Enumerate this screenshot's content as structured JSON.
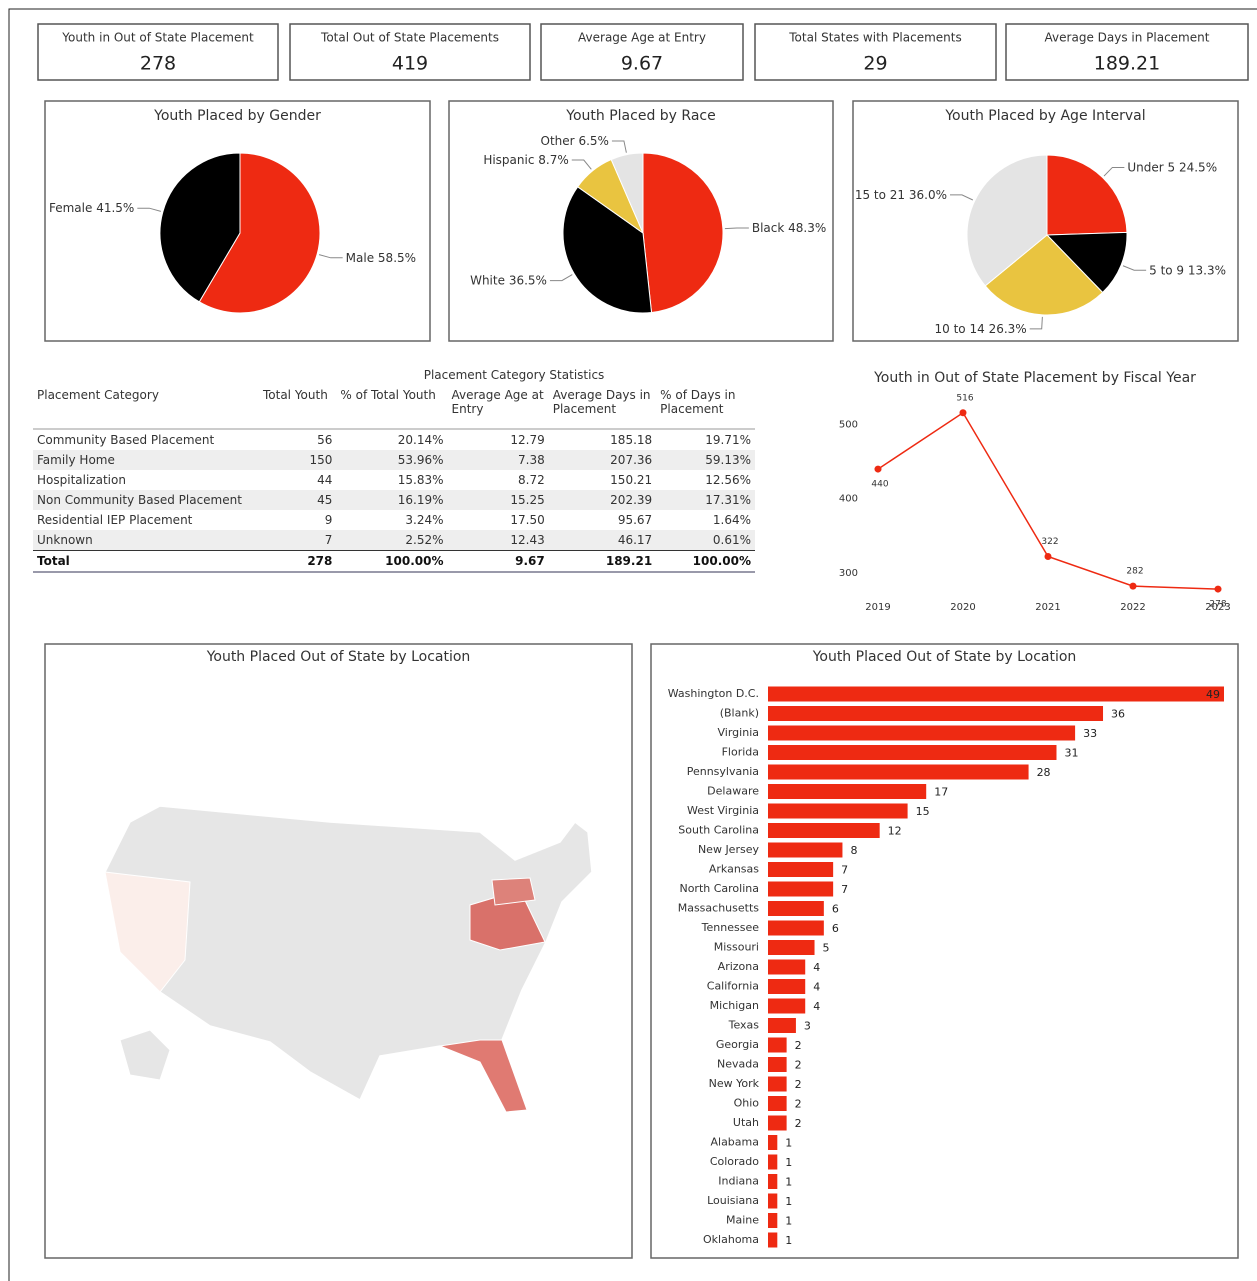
{
  "kpis": [
    {
      "label": "Youth in Out of State Placement",
      "value": 278
    },
    {
      "label": "Total Out of State Placements",
      "value": 419
    },
    {
      "label": "Average Age at Entry",
      "value": 9.67
    },
    {
      "label": "Total States with Placements",
      "value": 29
    },
    {
      "label": "Average Days in Placement",
      "value": 189.21
    }
  ],
  "table": {
    "title": "Placement Category Statistics",
    "columns": [
      "Placement Category",
      "Total Youth",
      "% of Total Youth",
      "Average Age at Entry",
      "Average Days in Placement",
      "% of Days in Placement"
    ],
    "rows": [
      [
        "Community Based Placement",
        "56",
        "20.14%",
        "12.79",
        "185.18",
        "19.71%"
      ],
      [
        "Family Home",
        "150",
        "53.96%",
        "7.38",
        "207.36",
        "59.13%"
      ],
      [
        "Hospitalization",
        "44",
        "15.83%",
        "8.72",
        "150.21",
        "12.56%"
      ],
      [
        "Non Community Based Placement",
        "45",
        "16.19%",
        "15.25",
        "202.39",
        "17.31%"
      ],
      [
        "Residential IEP Placement",
        "9",
        "3.24%",
        "17.50",
        "95.67",
        "1.64%"
      ],
      [
        "Unknown",
        "7",
        "2.52%",
        "12.43",
        "46.17",
        "0.61%"
      ]
    ],
    "total": [
      "Total",
      "278",
      "100.00%",
      "9.67",
      "189.21",
      "100.00%"
    ]
  },
  "chart_data": [
    {
      "type": "pie",
      "title": "Youth Placed by Gender",
      "categories": [
        "Male",
        "Female"
      ],
      "values": [
        58.5,
        41.5
      ],
      "value_labels": [
        "58.5%",
        "41.5%"
      ],
      "colors": [
        "#ee2a12",
        "#000000"
      ]
    },
    {
      "type": "pie",
      "title": "Youth Placed by Race",
      "categories": [
        "Black",
        "White",
        "Hispanic",
        "Other"
      ],
      "values": [
        48.3,
        36.5,
        8.7,
        6.5
      ],
      "value_labels": [
        "48.3%",
        "36.5%",
        "8.7%",
        "6.5%"
      ],
      "colors": [
        "#ee2a12",
        "#000000",
        "#e9c440",
        "#e4e4e4"
      ]
    },
    {
      "type": "pie",
      "title": "Youth Placed by Age Interval",
      "categories": [
        "Under 5",
        "5 to 9",
        "10 to 14",
        "15 to 21"
      ],
      "values": [
        24.5,
        13.3,
        26.3,
        36.0
      ],
      "value_labels": [
        "24.5%",
        "13.3%",
        "26.3%",
        "36.0%"
      ],
      "colors": [
        "#ee2a12",
        "#000000",
        "#e9c440",
        "#e4e4e4"
      ]
    },
    {
      "type": "line",
      "title": "Youth in Out of State Placement by Fiscal Year",
      "categories": [
        "2019",
        "2020",
        "2021",
        "2022",
        "2023"
      ],
      "values": [
        440,
        516,
        322,
        282,
        278
      ],
      "color": "#ee2a12",
      "ylim": [
        270,
        540
      ],
      "yticks": [
        300,
        400,
        500
      ]
    },
    {
      "type": "map",
      "title": "Youth Placed Out of State by Location"
    },
    {
      "type": "hbar",
      "title": "Youth Placed Out of State by Location",
      "categories": [
        "Washington D.C.",
        "(Blank)",
        "Virginia",
        "Florida",
        "Pennsylvania",
        "Delaware",
        "West Virginia",
        "South Carolina",
        "New Jersey",
        "Arkansas",
        "North Carolina",
        "Massachusetts",
        "Tennessee",
        "Missouri",
        "Arizona",
        "California",
        "Michigan",
        "Texas",
        "Georgia",
        "Nevada",
        "New York",
        "Ohio",
        "Utah",
        "Alabama",
        "Colorado",
        "Indiana",
        "Louisiana",
        "Maine",
        "Oklahoma"
      ],
      "values": [
        49,
        36,
        33,
        31,
        28,
        17,
        15,
        12,
        8,
        7,
        7,
        6,
        6,
        5,
        4,
        4,
        4,
        3,
        2,
        2,
        2,
        2,
        2,
        1,
        1,
        1,
        1,
        1,
        1
      ],
      "color": "#ee2a12",
      "xlim": [
        0,
        49
      ]
    }
  ]
}
